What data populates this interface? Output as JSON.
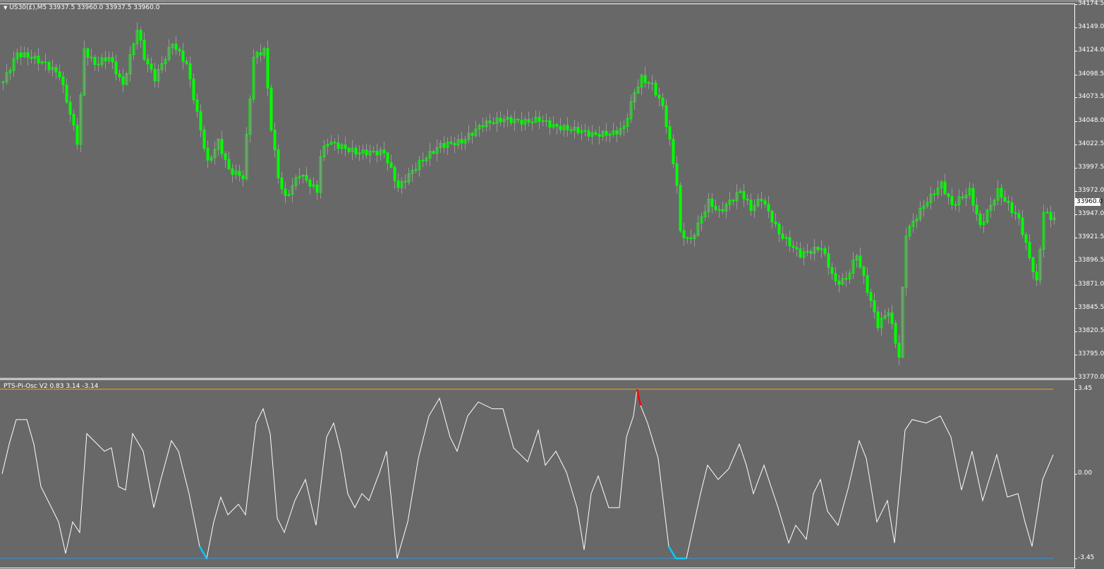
{
  "main": {
    "symbol_title": "US30(£),M5  33937.5 33960.0 33937.5 33960.0",
    "price_ticks": [
      "34174.5",
      "34149.0",
      "34124.0",
      "34098.5",
      "34073.5",
      "34048.0",
      "34022.5",
      "33997.5",
      "33972.0",
      "33947.0",
      "33921.5",
      "33896.5",
      "33871.0",
      "33845.5",
      "33820.5",
      "33795.0",
      "33770.0"
    ],
    "price_range": [
      33770.0,
      34174.5
    ],
    "current_price": "33960.0",
    "candle_color": "#00ff00",
    "close_path": [
      [
        0,
        34090.6
      ],
      [
        4,
        34121.1
      ],
      [
        8,
        34117.3
      ],
      [
        12,
        34109.6
      ],
      [
        16,
        34098.2
      ],
      [
        19,
        34056.2
      ],
      [
        21,
        34025.7
      ],
      [
        23,
        34124.9
      ],
      [
        26,
        34109.6
      ],
      [
        30,
        34117.3
      ],
      [
        34,
        34086.7
      ],
      [
        38,
        34147.8
      ],
      [
        40,
        34117.3
      ],
      [
        43,
        34094.4
      ],
      [
        48,
        34132.5
      ],
      [
        52,
        34109.6
      ],
      [
        55,
        34056.2
      ],
      [
        58,
        34002.8
      ],
      [
        61,
        34025.7
      ],
      [
        64,
        33995.1
      ],
      [
        68,
        33987.5
      ],
      [
        71,
        34117.3
      ],
      [
        74,
        34124.9
      ],
      [
        76,
        34040.9
      ],
      [
        78,
        33987.5
      ],
      [
        80,
        33964.6
      ],
      [
        84,
        33991.3
      ],
      [
        89,
        33972.2
      ],
      [
        90,
        34010.4
      ],
      [
        92,
        34025.7
      ],
      [
        100,
        34014.2
      ],
      [
        108,
        34014.2
      ],
      [
        112,
        33976.1
      ],
      [
        118,
        34002.8
      ],
      [
        124,
        34021.9
      ],
      [
        130,
        34025.7
      ],
      [
        136,
        34044.8
      ],
      [
        142,
        34050.1
      ],
      [
        148,
        34047.0
      ],
      [
        152,
        34050.1
      ],
      [
        156,
        34042.5
      ],
      [
        164,
        34037.1
      ],
      [
        167,
        34033.3
      ],
      [
        173,
        34034.8
      ],
      [
        176,
        34040.9
      ],
      [
        179,
        34079.1
      ],
      [
        181,
        34094.4
      ],
      [
        184,
        34086.7
      ],
      [
        187,
        34063.8
      ],
      [
        189,
        34025.7
      ],
      [
        191,
        33979.9
      ],
      [
        192,
        33926.5
      ],
      [
        195,
        33918.8
      ],
      [
        200,
        33960.8
      ],
      [
        203,
        33949.4
      ],
      [
        209,
        33972.2
      ],
      [
        212,
        33953.2
      ],
      [
        215,
        33964.6
      ],
      [
        220,
        33926.5
      ],
      [
        226,
        33903.6
      ],
      [
        232,
        33911.2
      ],
      [
        236,
        33873.0
      ],
      [
        239,
        33876.9
      ],
      [
        242,
        33903.6
      ],
      [
        248,
        33827.2
      ],
      [
        251,
        33842.5
      ],
      [
        254,
        33792.9
      ],
      [
        255,
        33865.4
      ],
      [
        256,
        33926.5
      ],
      [
        261,
        33957.0
      ],
      [
        266,
        33979.9
      ],
      [
        269,
        33957.0
      ],
      [
        274,
        33972.2
      ],
      [
        277,
        33934.1
      ],
      [
        282,
        33972.2
      ],
      [
        288,
        33941.7
      ],
      [
        293,
        33873.0
      ],
      [
        295,
        33949.4
      ],
      [
        298,
        33941.7
      ]
    ]
  },
  "oscillator": {
    "title": "PTS-Pi-Osc V2 0.83 3.14 -3.14",
    "ticks": [
      "3.45",
      "0.00",
      "-3.45"
    ],
    "range": [
      -3.45,
      3.45
    ],
    "upper_level_color": "#ffa500",
    "lower_level_color": "#3399dd",
    "line_color": "#ffffff",
    "overbought_color": "#ff0000",
    "oversold_color": "#00ccff",
    "points": [
      [
        0,
        0
      ],
      [
        2,
        1.21
      ],
      [
        4,
        2.21
      ],
      [
        7,
        2.21
      ],
      [
        9,
        1.21
      ],
      [
        11,
        -0.52
      ],
      [
        14,
        -1.38
      ],
      [
        16,
        -1.96
      ],
      [
        18,
        -3.25
      ],
      [
        20,
        -1.96
      ],
      [
        22,
        -2.39
      ],
      [
        24,
        1.64
      ],
      [
        26,
        1.35
      ],
      [
        29,
        0.92
      ],
      [
        31,
        1.06
      ],
      [
        33,
        -0.52
      ],
      [
        35,
        -0.66
      ],
      [
        37,
        1.64
      ],
      [
        40,
        0.92
      ],
      [
        43,
        -1.38
      ],
      [
        45,
        -0.23
      ],
      [
        48,
        1.35
      ],
      [
        50,
        0.92
      ],
      [
        53,
        -0.81
      ],
      [
        56,
        -2.96
      ],
      [
        58,
        -3.45
      ],
      [
        60,
        -1.96
      ],
      [
        62,
        -0.95
      ],
      [
        64,
        -1.67
      ],
      [
        67,
        -1.24
      ],
      [
        69,
        -1.67
      ],
      [
        72,
        2.07
      ],
      [
        74,
        2.65
      ],
      [
        76,
        1.64
      ],
      [
        78,
        -1.81
      ],
      [
        80,
        -2.39
      ],
      [
        83,
        -1.09
      ],
      [
        86,
        -0.23
      ],
      [
        89,
        -2.1
      ],
      [
        92,
        1.5
      ],
      [
        94,
        2.07
      ],
      [
        96,
        0.92
      ],
      [
        98,
        -0.81
      ],
      [
        100,
        -1.38
      ],
      [
        102,
        -0.81
      ],
      [
        104,
        -1.09
      ],
      [
        107,
        0.06
      ],
      [
        109,
        0.92
      ],
      [
        112,
        -3.45
      ],
      [
        115,
        -1.96
      ],
      [
        118,
        0.63
      ],
      [
        121,
        2.36
      ],
      [
        124,
        3.08
      ],
      [
        127,
        1.5
      ],
      [
        129,
        0.92
      ],
      [
        132,
        2.36
      ],
      [
        135,
        2.93
      ],
      [
        139,
        2.65
      ],
      [
        142,
        2.65
      ],
      [
        145,
        1.06
      ],
      [
        149,
        0.49
      ],
      [
        152,
        1.78
      ],
      [
        154,
        0.35
      ],
      [
        157,
        0.92
      ],
      [
        160,
        0.06
      ],
      [
        163,
        -1.38
      ],
      [
        165,
        -3.1
      ],
      [
        167,
        -0.81
      ],
      [
        169,
        -0.09
      ],
      [
        172,
        -1.38
      ],
      [
        175,
        -1.38
      ],
      [
        177,
        1.5
      ],
      [
        179,
        2.36
      ],
      [
        180,
        3.45
      ],
      [
        181,
        2.79
      ],
      [
        183,
        2.07
      ],
      [
        186,
        0.63
      ],
      [
        189,
        -2.96
      ],
      [
        191,
        -3.45
      ],
      [
        194,
        -3.45
      ],
      [
        198,
        -0.81
      ],
      [
        200,
        0.35
      ],
      [
        203,
        -0.23
      ],
      [
        206,
        0.2
      ],
      [
        209,
        1.21
      ],
      [
        211,
        0.35
      ],
      [
        213,
        -0.81
      ],
      [
        216,
        0.35
      ],
      [
        218,
        -0.52
      ],
      [
        220,
        -1.38
      ],
      [
        223,
        -2.82
      ],
      [
        225,
        -2.1
      ],
      [
        228,
        -2.67
      ],
      [
        230,
        -0.81
      ],
      [
        232,
        -0.23
      ],
      [
        234,
        -1.52
      ],
      [
        237,
        -2.1
      ],
      [
        240,
        -0.52
      ],
      [
        243,
        1.35
      ],
      [
        245,
        0.63
      ],
      [
        248,
        -1.96
      ],
      [
        251,
        -1.09
      ],
      [
        253,
        -2.82
      ],
      [
        256,
        1.78
      ],
      [
        258,
        2.21
      ],
      [
        262,
        2.07
      ],
      [
        266,
        2.36
      ],
      [
        269,
        1.5
      ],
      [
        272,
        -0.66
      ],
      [
        275,
        0.92
      ],
      [
        278,
        -1.09
      ],
      [
        282,
        0.78
      ],
      [
        285,
        -0.95
      ],
      [
        288,
        -0.81
      ],
      [
        290,
        -1.96
      ],
      [
        292,
        -2.96
      ],
      [
        295,
        -0.23
      ],
      [
        298,
        0.78
      ]
    ]
  }
}
